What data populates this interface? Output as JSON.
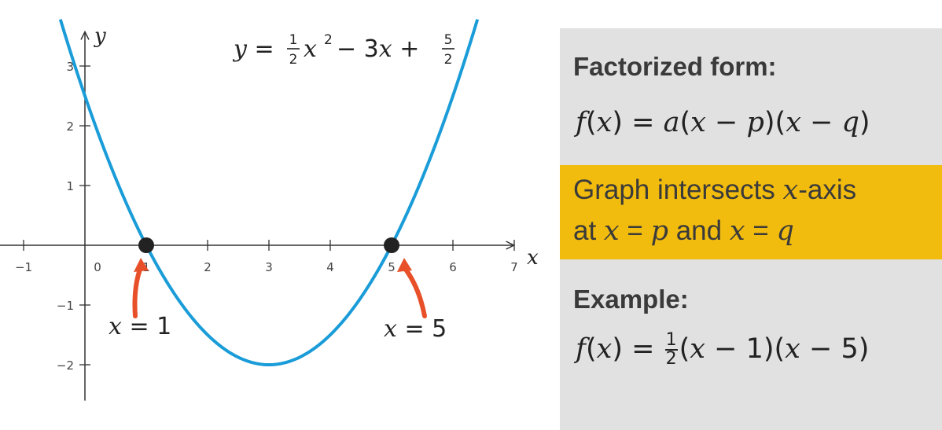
{
  "chart_data": {
    "type": "line",
    "title_parts": [
      "y",
      " = ",
      "1",
      "2",
      "x",
      "2",
      " − 3",
      "x",
      " + ",
      "5",
      "2"
    ],
    "xlabel": "x",
    "ylabel": "y",
    "xlim": [
      -1.4,
      7.2
    ],
    "ylim": [
      -2.6,
      3.6
    ],
    "x_ticks": [
      -1,
      0,
      1,
      2,
      3,
      4,
      5,
      6,
      7
    ],
    "x_tick_labels": [
      "−1",
      "0",
      "1",
      "2",
      "3",
      "4",
      "5",
      "6",
      "7"
    ],
    "y_ticks": [
      3,
      2,
      1,
      -1,
      -2
    ],
    "y_tick_labels": [
      "3",
      "2",
      "1",
      "−1",
      "−2"
    ],
    "series": [
      {
        "coefficients": {
          "a": 0.5,
          "b": -3,
          "c": 2.5
        },
        "x_range": [
          -0.4,
          6.4
        ],
        "color": "#1a9cd8"
      }
    ],
    "points": [
      {
        "x": 1,
        "y": 0,
        "color": "#222222"
      },
      {
        "x": 5,
        "y": 0,
        "color": "#222222"
      }
    ],
    "annotations": [
      {
        "text_var": "x",
        "text_rest": " = 1",
        "arrow_color": "#e8502a"
      },
      {
        "text_var": "x",
        "text_rest": " = 5",
        "arrow_color": "#e8502a"
      }
    ],
    "grid": false
  },
  "panel": {
    "bg_color": "#e1e1e1",
    "highlight_color": "#f2bc0e",
    "heading1": "Factorized form:",
    "formula1_parts": [
      "f",
      "(",
      "x",
      ") = ",
      "a",
      "(",
      "x",
      " − ",
      "p",
      ")(",
      "x",
      " − ",
      "q",
      ")"
    ],
    "highlight_line1_parts": [
      "Graph intersects ",
      "x",
      "-axis"
    ],
    "highlight_line2_parts": [
      "at ",
      "x",
      " = ",
      "p",
      " and ",
      "x",
      " = ",
      "q"
    ],
    "heading2": "Example:",
    "formula2_parts": [
      "f",
      "(",
      "x",
      ") = ",
      "1",
      "2",
      "(",
      "x",
      " − 1)(",
      "x",
      " − 5)"
    ]
  }
}
